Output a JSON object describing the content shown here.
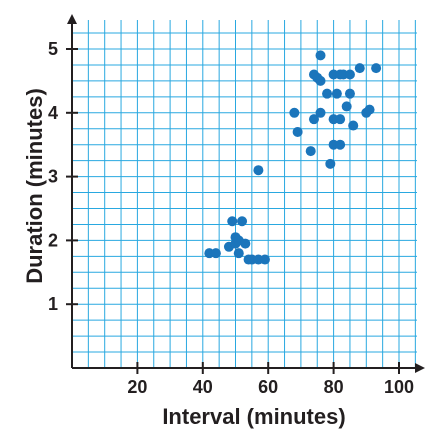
{
  "chart_data": {
    "type": "scatter",
    "title": "",
    "xlabel": "Interval (minutes)",
    "ylabel": "Duration (minutes)",
    "xlim": [
      0,
      110
    ],
    "ylim": [
      0,
      5.5
    ],
    "x_ticks": [
      20,
      40,
      60,
      80,
      100
    ],
    "y_ticks": [
      1,
      2,
      3,
      4,
      5
    ],
    "x_minor_step": 5,
    "y_minor_step": 0.25,
    "grid": true,
    "colors": {
      "point": "#1b75bb",
      "grid": "#29a8e0",
      "axis": "#231f20"
    },
    "series": [
      {
        "points": [
          [
            42,
            1.8
          ],
          [
            44,
            1.8
          ],
          [
            48,
            1.9
          ],
          [
            49,
            2.3
          ],
          [
            50,
            1.95
          ],
          [
            50,
            2.05
          ],
          [
            51,
            1.8
          ],
          [
            51,
            2.0
          ],
          [
            52,
            2.3
          ],
          [
            53,
            1.95
          ],
          [
            54,
            1.7
          ],
          [
            55,
            1.7
          ],
          [
            57,
            1.7
          ],
          [
            57,
            3.1
          ],
          [
            59,
            1.7
          ],
          [
            68,
            4.0
          ],
          [
            69,
            3.7
          ],
          [
            73,
            3.4
          ],
          [
            74,
            3.9
          ],
          [
            74,
            4.6
          ],
          [
            75,
            4.55
          ],
          [
            76,
            4.0
          ],
          [
            76,
            4.5
          ],
          [
            76,
            4.9
          ],
          [
            78,
            4.3
          ],
          [
            79,
            3.2
          ],
          [
            80,
            3.5
          ],
          [
            80,
            4.6
          ],
          [
            80,
            3.9
          ],
          [
            81,
            4.3
          ],
          [
            82,
            3.5
          ],
          [
            82,
            3.9
          ],
          [
            82,
            4.6
          ],
          [
            83,
            4.6
          ],
          [
            84,
            4.1
          ],
          [
            85,
            4.3
          ],
          [
            85,
            4.6
          ],
          [
            86,
            3.8
          ],
          [
            88,
            4.7
          ],
          [
            90,
            4.0
          ],
          [
            91,
            4.05
          ],
          [
            93,
            4.7
          ]
        ]
      }
    ]
  }
}
